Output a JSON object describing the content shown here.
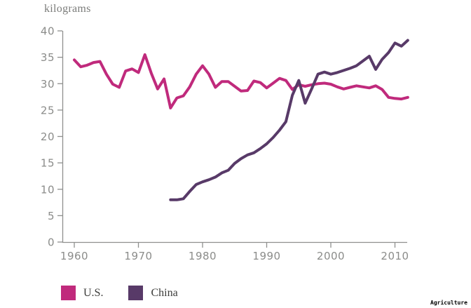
{
  "header": {
    "unit_label": "kilograms"
  },
  "footer": {
    "category_tag": "Agriculture"
  },
  "chart_data": {
    "type": "line",
    "title": "",
    "unit_label": "kilograms",
    "xlabel": "",
    "ylabel": "kilograms",
    "ylim": [
      0,
      40
    ],
    "xlim": [
      1958,
      2013
    ],
    "y_ticks": [
      0,
      5,
      10,
      15,
      20,
      25,
      30,
      35,
      40
    ],
    "x_ticks": [
      1960,
      1970,
      1980,
      1990,
      2000,
      2010
    ],
    "grid": false,
    "legend_position": "bottom-left",
    "axis_color": "#8f908e",
    "tick_label_color": "#8b8c8a",
    "frequency": "annual",
    "series": [
      {
        "name": "U.S.",
        "color": "#c02a7c",
        "start_year": 1960,
        "values": [
          34.5,
          33.2,
          33.5,
          34.0,
          34.2,
          31.8,
          29.9,
          29.3,
          32.4,
          32.8,
          32.1,
          35.5,
          32.0,
          29.0,
          30.9,
          25.4,
          27.3,
          27.7,
          29.4,
          31.8,
          33.4,
          31.8,
          29.3,
          30.4,
          30.4,
          29.5,
          28.6,
          28.7,
          30.5,
          30.2,
          29.2,
          30.1,
          31.0,
          30.6,
          28.9,
          29.8,
          29.5,
          29.8,
          30.0,
          30.1,
          29.9,
          29.4,
          29.0,
          29.3,
          29.6,
          29.4,
          29.2,
          29.6,
          28.9,
          27.4,
          27.2,
          27.1,
          27.4
        ]
      },
      {
        "name": "China",
        "color": "#583a68",
        "start_year": 1975,
        "values": [
          8.0,
          8.0,
          8.2,
          9.6,
          10.9,
          11.4,
          11.8,
          12.3,
          13.1,
          13.6,
          14.9,
          15.8,
          16.5,
          16.9,
          17.7,
          18.6,
          19.8,
          21.2,
          22.8,
          27.8,
          30.6,
          26.3,
          29.0,
          31.8,
          32.2,
          31.8,
          32.1,
          32.5,
          32.9,
          33.4,
          34.3,
          35.2,
          32.7,
          34.6,
          35.9,
          37.7,
          37.1,
          38.2
        ]
      }
    ]
  }
}
